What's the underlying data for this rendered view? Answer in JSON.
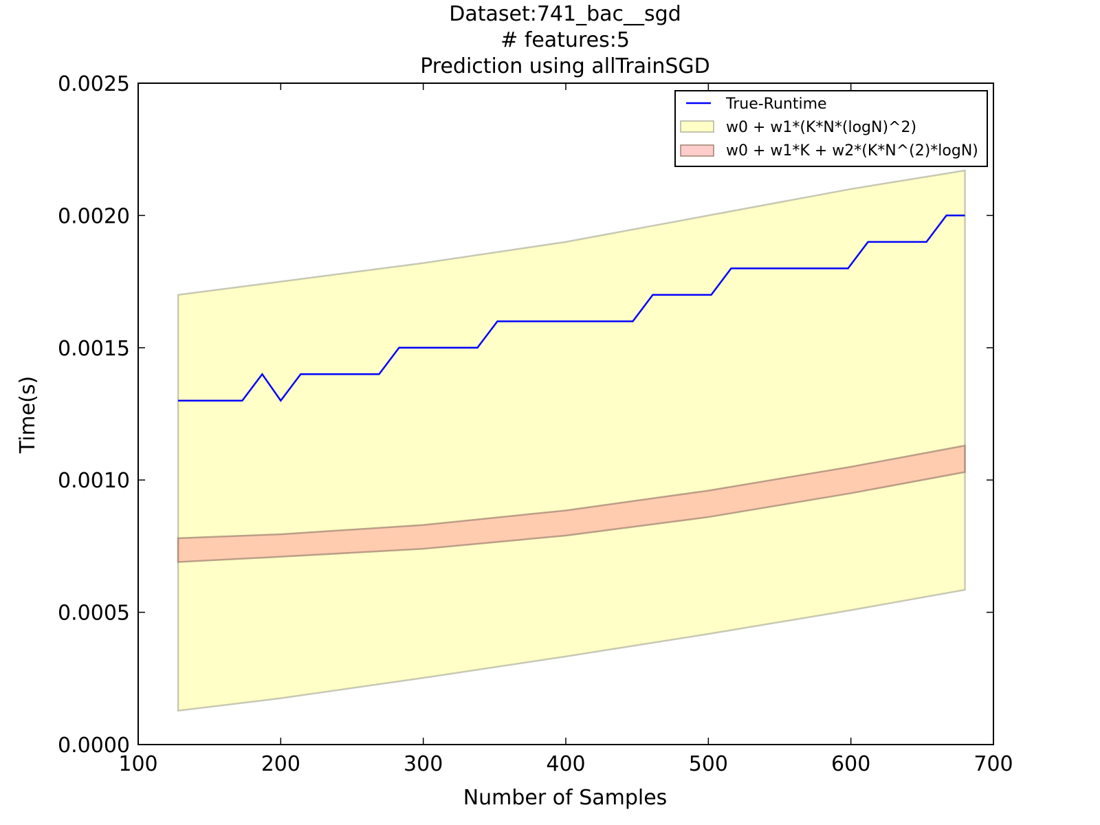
{
  "chart_data": {
    "type": "line",
    "title": [
      "Dataset:741_bac__sgd",
      "# features:5",
      "Prediction using allTrainSGD"
    ],
    "xlabel": "Number of Samples",
    "ylabel": "Time(s)",
    "xlim": [
      100,
      700
    ],
    "ylim": [
      0,
      0.0025
    ],
    "xticks": [
      100,
      200,
      300,
      400,
      500,
      600,
      700
    ],
    "xtick_labels": [
      "100",
      "200",
      "300",
      "400",
      "500",
      "600",
      "700"
    ],
    "yticks": [
      0,
      0.0005,
      0.001,
      0.0015,
      0.002,
      0.0025
    ],
    "ytick_labels": [
      "0.0000",
      "0.0005",
      "0.0010",
      "0.0015",
      "0.0020",
      "0.0025"
    ],
    "grid": false,
    "legend_position": "top-right",
    "series": [
      {
        "name": "True-Runtime",
        "kind": "line",
        "color": "#0000ff",
        "x": [
          128,
          173,
          187,
          200,
          214,
          269,
          283,
          338,
          352,
          447,
          461,
          502,
          516,
          598,
          612,
          653,
          667,
          680
        ],
        "y": [
          0.0013,
          0.0013,
          0.0014,
          0.0013,
          0.0014,
          0.0014,
          0.0015,
          0.0015,
          0.0016,
          0.0016,
          0.0017,
          0.0017,
          0.0018,
          0.0018,
          0.0019,
          0.0019,
          0.002,
          0.002
        ]
      }
    ],
    "bands": [
      {
        "name": "w0 + w1*(K*N*(logN)^2)",
        "color": "#ffff99",
        "edge_color": "#b0b0a0",
        "opacity": 0.55,
        "x": [
          128,
          200,
          300,
          400,
          500,
          600,
          680
        ],
        "lower": [
          0.000128,
          0.000175,
          0.000252,
          0.000333,
          0.000418,
          0.000508,
          0.000585
        ],
        "upper": [
          0.0017,
          0.00175,
          0.00182,
          0.0019,
          0.002,
          0.0021,
          0.00217
        ]
      },
      {
        "name": "w0 + w1*K + w2*(K*N^(2)*logN)",
        "color": "#ff9999",
        "edge_color": "#a08070",
        "opacity": 0.5,
        "x": [
          128,
          200,
          300,
          400,
          500,
          600,
          680
        ],
        "lower": [
          0.00069,
          0.00071,
          0.00074,
          0.00079,
          0.00086,
          0.00095,
          0.00103
        ],
        "upper": [
          0.00078,
          0.000795,
          0.00083,
          0.000885,
          0.00096,
          0.00105,
          0.00113
        ]
      }
    ]
  }
}
